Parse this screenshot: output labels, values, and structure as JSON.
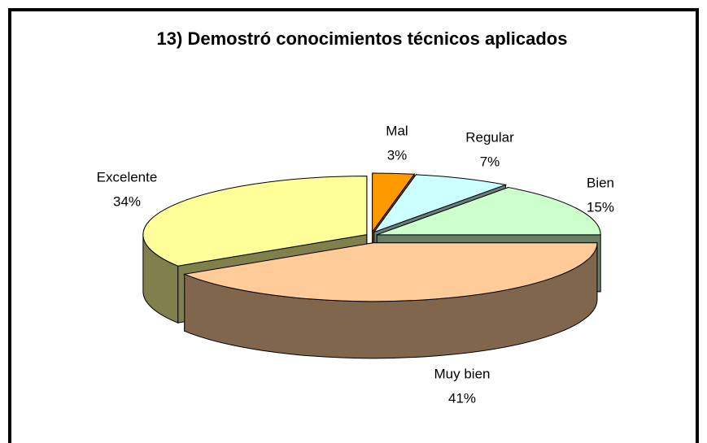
{
  "chart_data": {
    "type": "pie",
    "title": "13) Demostró conocimientos técnicos aplicados",
    "categories": [
      "Mal",
      "Regular",
      "Bien",
      "Muy bien",
      "Excelente"
    ],
    "values": [
      3,
      7,
      15,
      41,
      34
    ],
    "value_labels": [
      "3%",
      "7%",
      "15%",
      "41%",
      "34%"
    ],
    "colors": [
      "#ff9900",
      "#ccffff",
      "#ccffcc",
      "#ffcc99",
      "#ffff99"
    ]
  }
}
